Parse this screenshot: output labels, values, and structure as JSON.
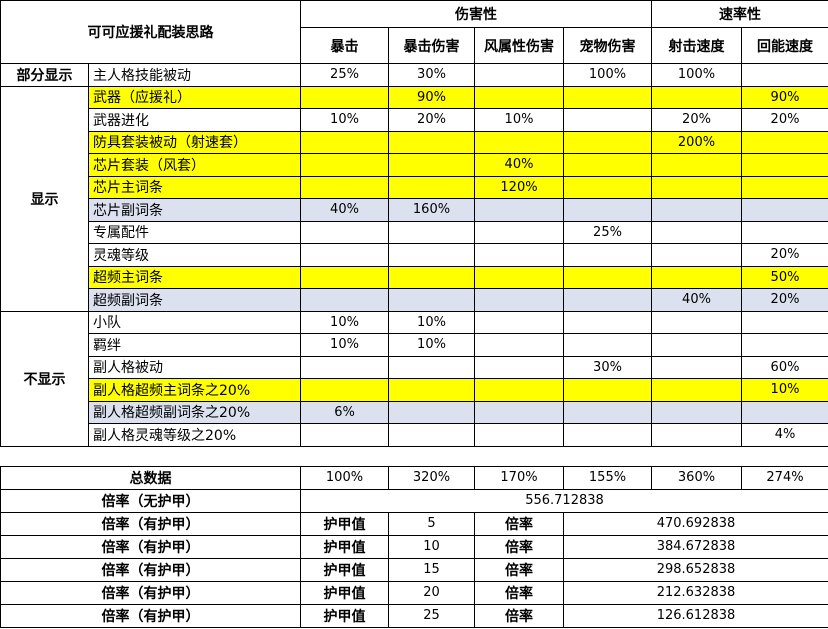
{
  "title": "可可应援礼配装思路",
  "header": {
    "groups": [
      {
        "label": "伤害性",
        "columns": [
          "暴击",
          "暴击伤害",
          "风属性伤害",
          "宠物伤害"
        ]
      },
      {
        "label": "速率性",
        "columns": [
          "射击速度",
          "回能速度"
        ]
      }
    ]
  },
  "sections": [
    {
      "label": "部分显示",
      "rows": [
        {
          "item": "主人格技能被动",
          "values": [
            "25%",
            "30%",
            null,
            "100%",
            "100%",
            null
          ]
        }
      ]
    },
    {
      "label": "显示",
      "rows": [
        {
          "item": "武器（应援礼）",
          "values": [
            null,
            "90%",
            null,
            null,
            null,
            "90%"
          ],
          "highlight": "#ffff00"
        },
        {
          "item": "武器进化",
          "values": [
            "10%",
            "20%",
            "10%",
            null,
            "20%",
            "20%"
          ]
        },
        {
          "item": "防具套装被动（射速套）",
          "values": [
            null,
            null,
            null,
            null,
            "200%",
            null
          ],
          "highlight": "#ffff00"
        },
        {
          "item": "芯片套装（风套）",
          "values": [
            null,
            null,
            "40%",
            null,
            null,
            null
          ],
          "highlight": "#ffff00"
        },
        {
          "item": "芯片主词条",
          "values": [
            null,
            null,
            "120%",
            null,
            null,
            null
          ],
          "highlight": "#ffff00"
        },
        {
          "item": "芯片副词条",
          "values": [
            "40%",
            "160%",
            null,
            null,
            null,
            null
          ],
          "highlight": "#dbe1ef"
        },
        {
          "item": "专属配件",
          "values": [
            null,
            null,
            null,
            "25%",
            null,
            null
          ]
        },
        {
          "item": "灵魂等级",
          "values": [
            null,
            null,
            null,
            null,
            null,
            "20%"
          ]
        },
        {
          "item": "超频主词条",
          "values": [
            null,
            null,
            null,
            null,
            null,
            "50%"
          ],
          "highlight": "#ffff00"
        },
        {
          "item": "超频副词条",
          "values": [
            null,
            null,
            null,
            null,
            "40%",
            "20%"
          ],
          "highlight": "#dbe1ef"
        }
      ]
    },
    {
      "label": "不显示",
      "rows": [
        {
          "item": "小队",
          "values": [
            "10%",
            "10%",
            null,
            null,
            null,
            null
          ]
        },
        {
          "item": "羁绊",
          "values": [
            "10%",
            "10%",
            null,
            null,
            null,
            null
          ]
        },
        {
          "item": "副人格被动",
          "values": [
            null,
            null,
            null,
            "30%",
            null,
            "60%"
          ]
        },
        {
          "item": "副人格超频主词条之20%",
          "values": [
            null,
            null,
            null,
            null,
            null,
            "10%"
          ],
          "highlight": "#ffff00"
        },
        {
          "item": "副人格超频副词条之20%",
          "values": [
            "6%",
            null,
            null,
            null,
            null,
            null
          ],
          "highlight": "#dbe1ef"
        },
        {
          "item": "副人格灵魂等级之20%",
          "values": [
            null,
            null,
            null,
            null,
            null,
            "4%"
          ]
        }
      ]
    }
  ],
  "totals": {
    "label": "总数据",
    "values": [
      "100%",
      "320%",
      "170%",
      "155%",
      "360%",
      "274%"
    ]
  },
  "no_armor": {
    "label": "倍率（无护甲）",
    "value": "556.712838"
  },
  "armor_rows": [
    {
      "label": "倍率（有护甲）",
      "armor_label": "护甲值",
      "armor": 5,
      "rate_label": "倍率",
      "rate": "470.692838"
    },
    {
      "label": "倍率（有护甲）",
      "armor_label": "护甲值",
      "armor": 10,
      "rate_label": "倍率",
      "rate": "384.672838"
    },
    {
      "label": "倍率（有护甲）",
      "armor_label": "护甲值",
      "armor": 15,
      "rate_label": "倍率",
      "rate": "298.652838"
    },
    {
      "label": "倍率（有护甲）",
      "armor_label": "护甲值",
      "armor": 20,
      "rate_label": "倍率",
      "rate": "212.632838"
    },
    {
      "label": "倍率（有护甲）",
      "armor_label": "护甲值",
      "armor": 25,
      "rate_label": "倍率",
      "rate": "126.612838"
    }
  ]
}
